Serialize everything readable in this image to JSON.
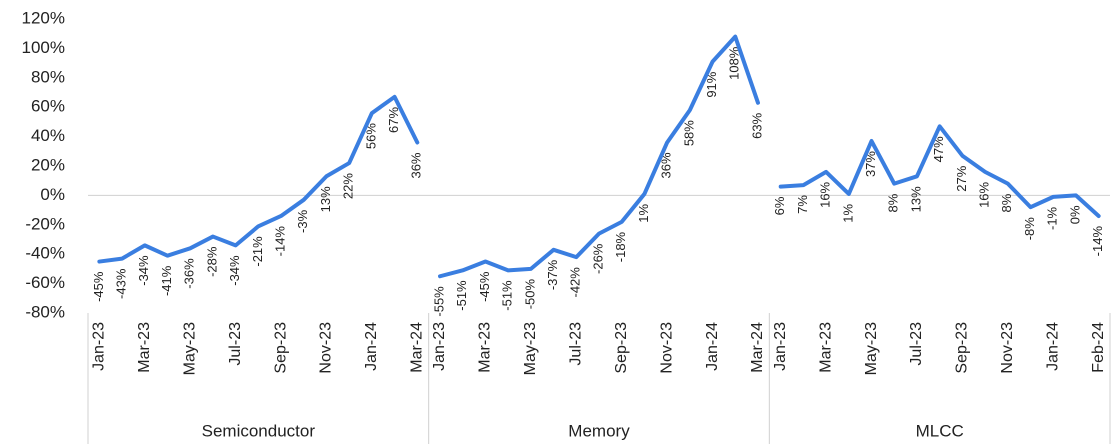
{
  "chart_data": {
    "type": "line",
    "color": "#3a7ee0",
    "ylim": [
      -80,
      120
    ],
    "yticks": [
      {
        "value": -80,
        "label": "-80%"
      },
      {
        "value": -60,
        "label": "-60%"
      },
      {
        "value": -40,
        "label": "-40%"
      },
      {
        "value": -20,
        "label": "-20%"
      },
      {
        "value": 0,
        "label": "0%"
      },
      {
        "value": 20,
        "label": "20%"
      },
      {
        "value": 40,
        "label": "40%"
      },
      {
        "value": 60,
        "label": "60%"
      },
      {
        "value": 80,
        "label": "80%"
      },
      {
        "value": 100,
        "label": "100%"
      },
      {
        "value": 120,
        "label": "120%"
      }
    ],
    "groups": [
      {
        "name": "Semiconductor",
        "categories": [
          "Jan-23",
          null,
          "Mar-23",
          null,
          "May-23",
          null,
          "Jul-23",
          null,
          "Sep-23",
          null,
          "Nov-23",
          null,
          "Jan-24",
          null,
          "Mar-24"
        ],
        "values": [
          -45,
          -43,
          -34,
          -41,
          -36,
          -28,
          -34,
          -21,
          -14,
          -3,
          13,
          22,
          56,
          67,
          36
        ],
        "value_labels": [
          "-45%",
          "-43%",
          "-34%",
          "-41%",
          "-36%",
          "-28%",
          "-34%",
          "-21%",
          "-14%",
          "-3%",
          "13%",
          "22%",
          "56%",
          "67%",
          "36%"
        ]
      },
      {
        "name": "Memory",
        "categories": [
          "Jan-23",
          null,
          "Mar-23",
          null,
          "May-23",
          null,
          "Jul-23",
          null,
          "Sep-23",
          null,
          "Nov-23",
          null,
          "Jan-24",
          null,
          "Mar-24"
        ],
        "values": [
          -55,
          -51,
          -45,
          -51,
          -50,
          -37,
          -42,
          -26,
          -18,
          1,
          36,
          58,
          91,
          108,
          63
        ],
        "value_labels": [
          "-55%",
          "-51%",
          "-45%",
          "-51%",
          "-50%",
          "-37%",
          "-42%",
          "-26%",
          "-18%",
          "1%",
          "36%",
          "58%",
          "91%",
          "108%",
          "63%"
        ]
      },
      {
        "name": "MLCC",
        "categories": [
          "Jan-23",
          null,
          "Mar-23",
          null,
          "May-23",
          null,
          "Jul-23",
          null,
          "Sep-23",
          null,
          "Nov-23",
          null,
          "Jan-24",
          null,
          "Feb-24"
        ],
        "values": [
          6,
          7,
          16,
          1,
          37,
          8,
          13,
          47,
          27,
          16,
          8,
          -8,
          -1,
          0,
          -14
        ],
        "value_labels": [
          "6%",
          "7%",
          "16%",
          "1%",
          "37%",
          "8%",
          "13%",
          "47%",
          "27%",
          "16%",
          "8%",
          "-8%",
          "-1%",
          "0%",
          "-14%"
        ]
      }
    ]
  }
}
